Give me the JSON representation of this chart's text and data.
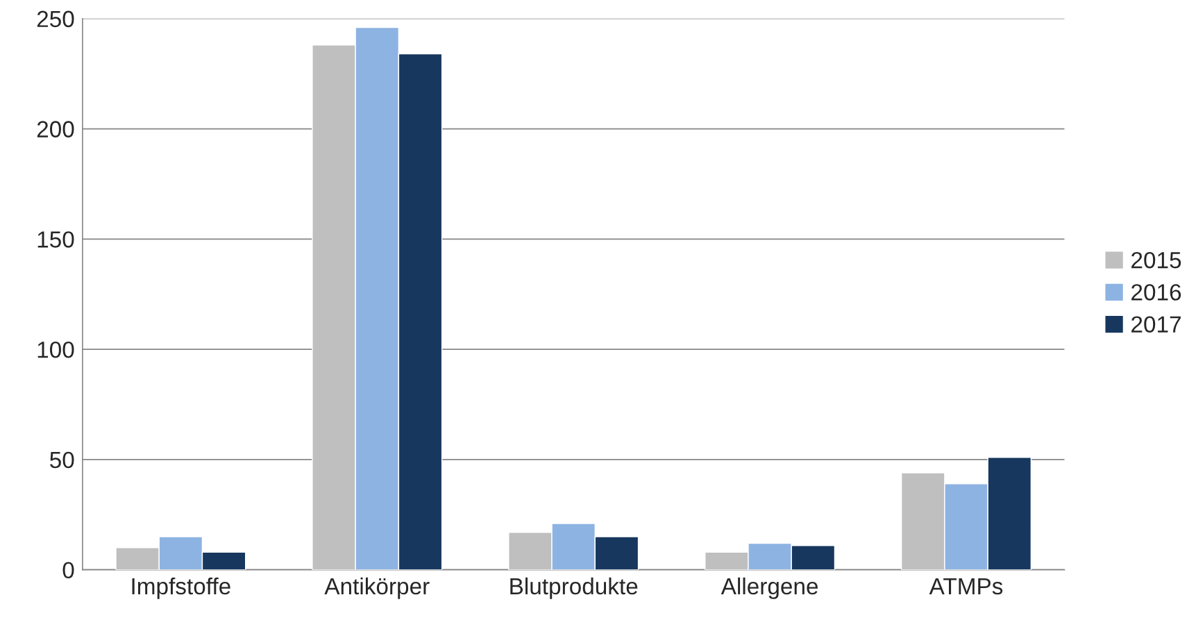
{
  "chart_data": {
    "type": "bar",
    "categories": [
      "Impfstoffe",
      "Antikörper",
      "Blutprodukte",
      "Allergene",
      "ATMPs"
    ],
    "series": [
      {
        "name": "2015",
        "color": "#bfbfbf",
        "values": [
          10,
          238,
          17,
          8,
          44
        ]
      },
      {
        "name": "2016",
        "color": "#8db3e2",
        "values": [
          15,
          246,
          21,
          12,
          39
        ]
      },
      {
        "name": "2017",
        "color": "#17375e",
        "values": [
          8,
          234,
          15,
          11,
          51
        ]
      }
    ],
    "ylim": [
      0,
      250
    ],
    "yticks": [
      0,
      50,
      100,
      150,
      200,
      250
    ],
    "grid": "y",
    "legend": "right"
  }
}
